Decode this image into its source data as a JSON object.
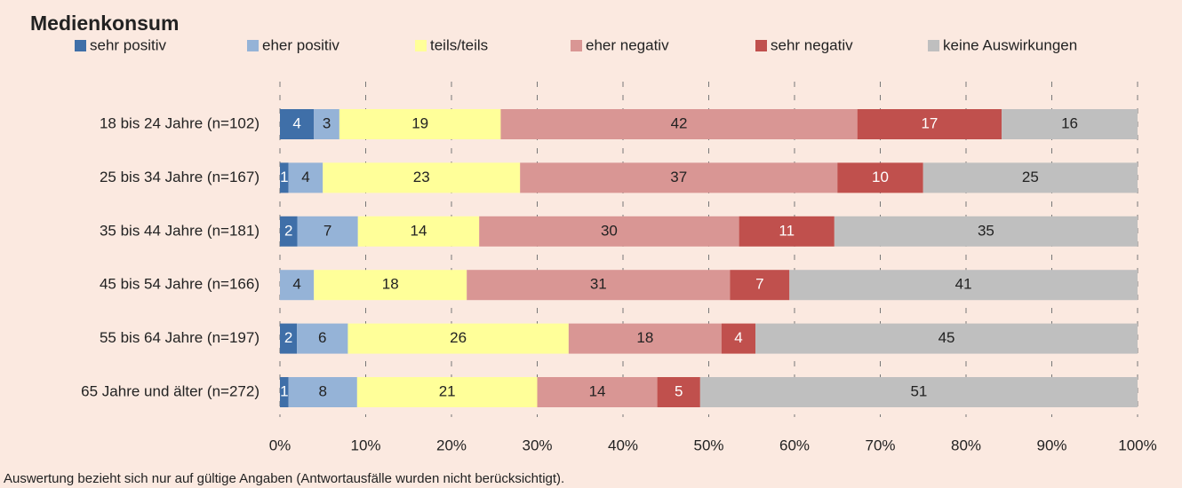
{
  "chart_data": {
    "type": "bar",
    "orientation": "horizontal",
    "stacking": "percent",
    "title": "Medienkonsum",
    "footnote": "Auswertung bezieht sich nur auf gültige Angaben (Antwortausfälle wurden nicht berücksichtigt).",
    "categories": [
      "18 bis 24 Jahre (n=102)",
      "25 bis 34 Jahre (n=167)",
      "35 bis 44 Jahre (n=181)",
      "45 bis 54 Jahre (n=166)",
      "55 bis 64 Jahre (n=197)",
      "65 Jahre und älter (n=272)"
    ],
    "series": [
      {
        "name": "sehr positiv",
        "color": "#3f6fa8",
        "text_color": "#ffffff",
        "values": [
          4,
          1,
          2,
          0,
          2,
          1
        ]
      },
      {
        "name": "eher positiv",
        "color": "#95b3d7",
        "text_color": "#222222",
        "values": [
          3,
          4,
          7,
          4,
          6,
          8
        ]
      },
      {
        "name": "teils/teils",
        "color": "#ffff99",
        "text_color": "#222222",
        "values": [
          19,
          23,
          14,
          18,
          26,
          21
        ]
      },
      {
        "name": "eher negativ",
        "color": "#d99694",
        "text_color": "#222222",
        "values": [
          42,
          37,
          30,
          31,
          18,
          14
        ]
      },
      {
        "name": "sehr negativ",
        "color": "#c0504d",
        "text_color": "#ffffff",
        "values": [
          17,
          10,
          11,
          7,
          4,
          5
        ]
      },
      {
        "name": "keine Auswirkungen",
        "color": "#bfbfbf",
        "text_color": "#222222",
        "values": [
          16,
          25,
          35,
          41,
          45,
          51
        ]
      }
    ],
    "xlim": [
      0,
      100
    ],
    "xticks": [
      {
        "value": 0,
        "label": "0%"
      },
      {
        "value": 10,
        "label": "10%"
      },
      {
        "value": 20,
        "label": "20%"
      },
      {
        "value": 30,
        "label": "30%"
      },
      {
        "value": 40,
        "label": "40%"
      },
      {
        "value": 50,
        "label": "50%"
      },
      {
        "value": 60,
        "label": "60%"
      },
      {
        "value": 70,
        "label": "70%"
      },
      {
        "value": 80,
        "label": "80%"
      },
      {
        "value": 90,
        "label": "90%"
      },
      {
        "value": 100,
        "label": "100%"
      }
    ],
    "grid": true,
    "legend": "top"
  }
}
